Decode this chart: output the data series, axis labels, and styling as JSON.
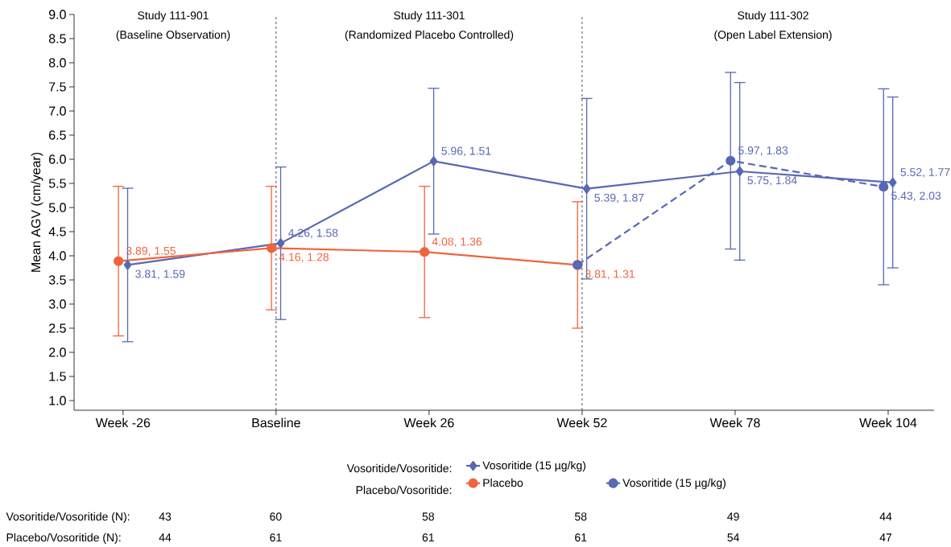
{
  "chart_data": {
    "type": "line",
    "ylabel": "Mean AGV (cm/year)",
    "categories": [
      "Week -26",
      "Baseline",
      "Week 26",
      "Week 52",
      "Week 78",
      "Week 104"
    ],
    "series": [
      {
        "name": "Vosoritide (15 µg/kg)",
        "color": "#5868b4",
        "marker": "diamond",
        "line_style": "solid",
        "values": [
          3.81,
          4.26,
          5.96,
          5.39,
          5.75,
          5.52
        ],
        "errors": [
          1.59,
          1.58,
          1.51,
          1.87,
          1.84,
          1.77
        ],
        "value_labels": [
          "3.81, 1.59",
          "4.26, 1.58",
          "5.96, 1.51",
          "5.39, 1.87",
          "5.75, 1.84",
          "5.52, 1.77"
        ]
      },
      {
        "name": "Placebo",
        "color": "#f0643c",
        "marker": "circle",
        "line_style": "solid",
        "values": [
          3.89,
          4.16,
          4.08,
          3.81,
          null,
          null
        ],
        "errors": [
          1.55,
          1.28,
          1.36,
          1.31,
          null,
          null
        ],
        "value_labels": [
          "3.89, 1.55",
          "4.16, 1.28",
          "4.08, 1.36",
          "3.81, 1.31",
          null,
          null
        ]
      },
      {
        "name": "Vosoritide (15 µg/kg)",
        "color": "#5868b4",
        "marker": "circle",
        "line_style": "dashed",
        "values": [
          null,
          null,
          null,
          3.81,
          5.97,
          5.43
        ],
        "errors": [
          null,
          null,
          null,
          null,
          1.83,
          2.03
        ],
        "value_labels": [
          null,
          null,
          null,
          null,
          "5.97, 1.83",
          "5.43, 2.03"
        ]
      }
    ],
    "ylim": [
      0.8,
      9.0
    ],
    "yticks": [
      {
        "value": 1,
        "label": "1.0"
      },
      {
        "value": 1.5,
        "label": "1.5"
      },
      {
        "value": 2,
        "label": "2.0"
      },
      {
        "value": 2.5,
        "label": "2.5"
      },
      {
        "value": 3,
        "label": "3.0"
      },
      {
        "value": 3.5,
        "label": "3.5"
      },
      {
        "value": 4,
        "label": "4.0"
      },
      {
        "value": 4.5,
        "label": "4.5"
      },
      {
        "value": 5,
        "label": "5.0"
      },
      {
        "value": 5.5,
        "label": "5.5"
      },
      {
        "value": 6,
        "label": "6.0"
      },
      {
        "value": 6.5,
        "label": "6.5"
      },
      {
        "value": 7,
        "label": "7.0"
      },
      {
        "value": 7.5,
        "label": "7.5"
      },
      {
        "value": 8,
        "label": "8.0"
      },
      {
        "value": 8.5,
        "label": "8.5"
      },
      {
        "value": 9,
        "label": "9.0"
      }
    ],
    "ref_lines": [
      {
        "axis": "x",
        "value": "Baseline",
        "color": "#555555",
        "line_style": "dashed"
      },
      {
        "axis": "x",
        "value": "Week 52",
        "color": "#555555",
        "line_style": "dashed"
      }
    ],
    "legend": "bottom",
    "grid": false,
    "annotations": [
      "Study 111-901",
      "(Baseline Observation)",
      "Study 111-301",
      "(Randomized Placebo Controlled)",
      "Study 111-302",
      "(Open Label Extension)",
      "Vosoritide/Vosoritide:",
      "Placebo/Vosoritide:",
      "Vosoritide/Vosoritide (N):",
      "43",
      "60",
      "58",
      "58",
      "49",
      "44",
      "Placebo/Vosoritide (N):",
      "44",
      "61",
      "61",
      "61",
      "54",
      "47"
    ]
  }
}
